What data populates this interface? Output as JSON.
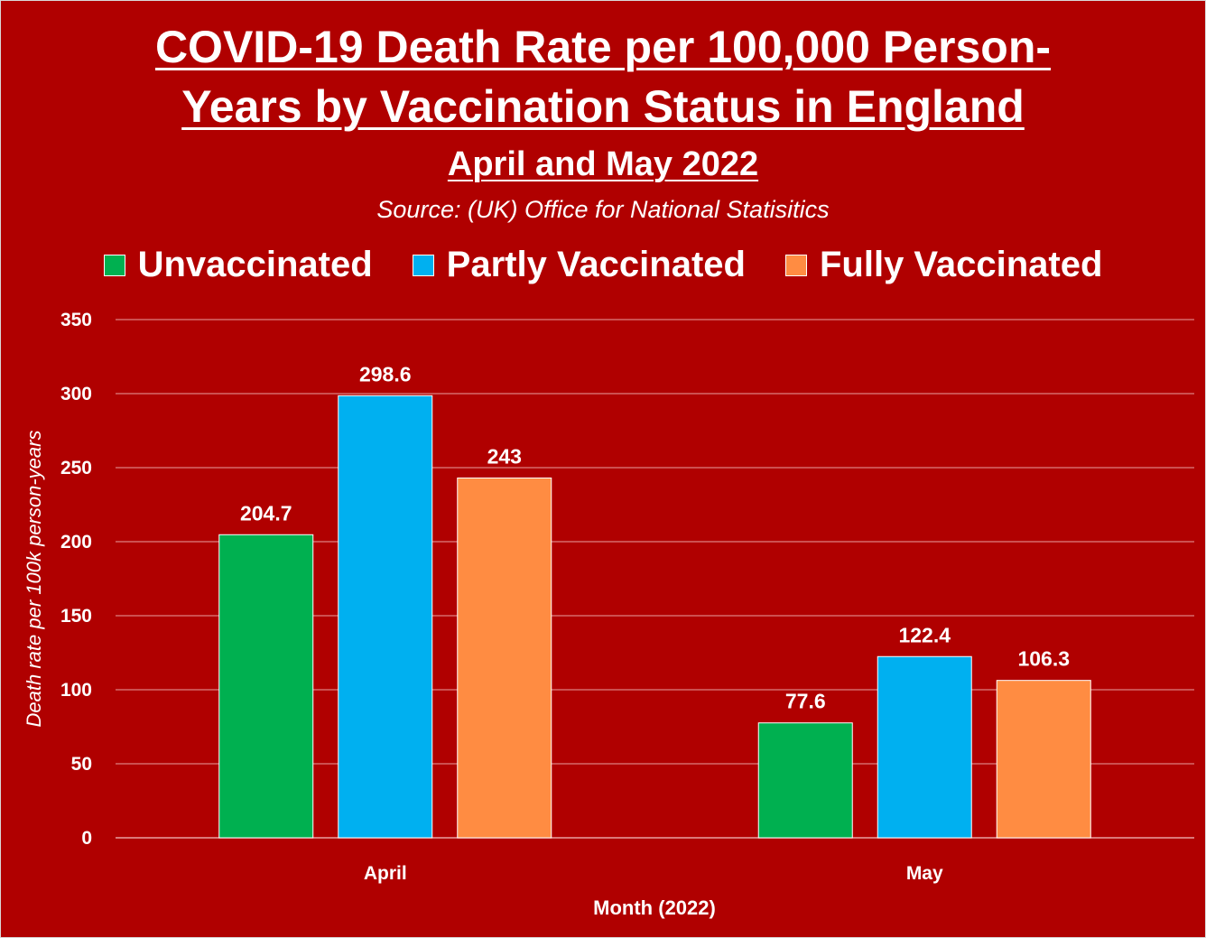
{
  "chart_data": {
    "type": "bar",
    "title_line1": "COVID-19 Death Rate per 100,000 Person-",
    "title_line2": "Years by Vaccination Status in England",
    "subtitle": "April and May 2022",
    "source": "Source: (UK) Office for National Statisitics",
    "xlabel": "Month (2022)",
    "ylabel": "Death rate per 100k person-years",
    "categories": [
      "April",
      "May"
    ],
    "ylim": [
      0,
      350
    ],
    "yticks": [
      0,
      50,
      100,
      150,
      200,
      250,
      300,
      350
    ],
    "grid": true,
    "legend_position": "top",
    "series": [
      {
        "name": "Unvaccinated",
        "color": "#00b050",
        "values": [
          204.7,
          77.6
        ],
        "labels": [
          "204.7",
          "77.6"
        ]
      },
      {
        "name": "Partly Vaccinated",
        "color": "#00b0f0",
        "values": [
          298.6,
          122.4
        ],
        "labels": [
          "298.6",
          "122.4"
        ]
      },
      {
        "name": "Fully Vaccinated",
        "color": "#ff8c42",
        "values": [
          243,
          106.3
        ],
        "labels": [
          "243",
          "106.3"
        ]
      }
    ]
  },
  "colors": {
    "background": "#b00000",
    "gridline": "#e8a0a0",
    "text": "#ffffff"
  }
}
